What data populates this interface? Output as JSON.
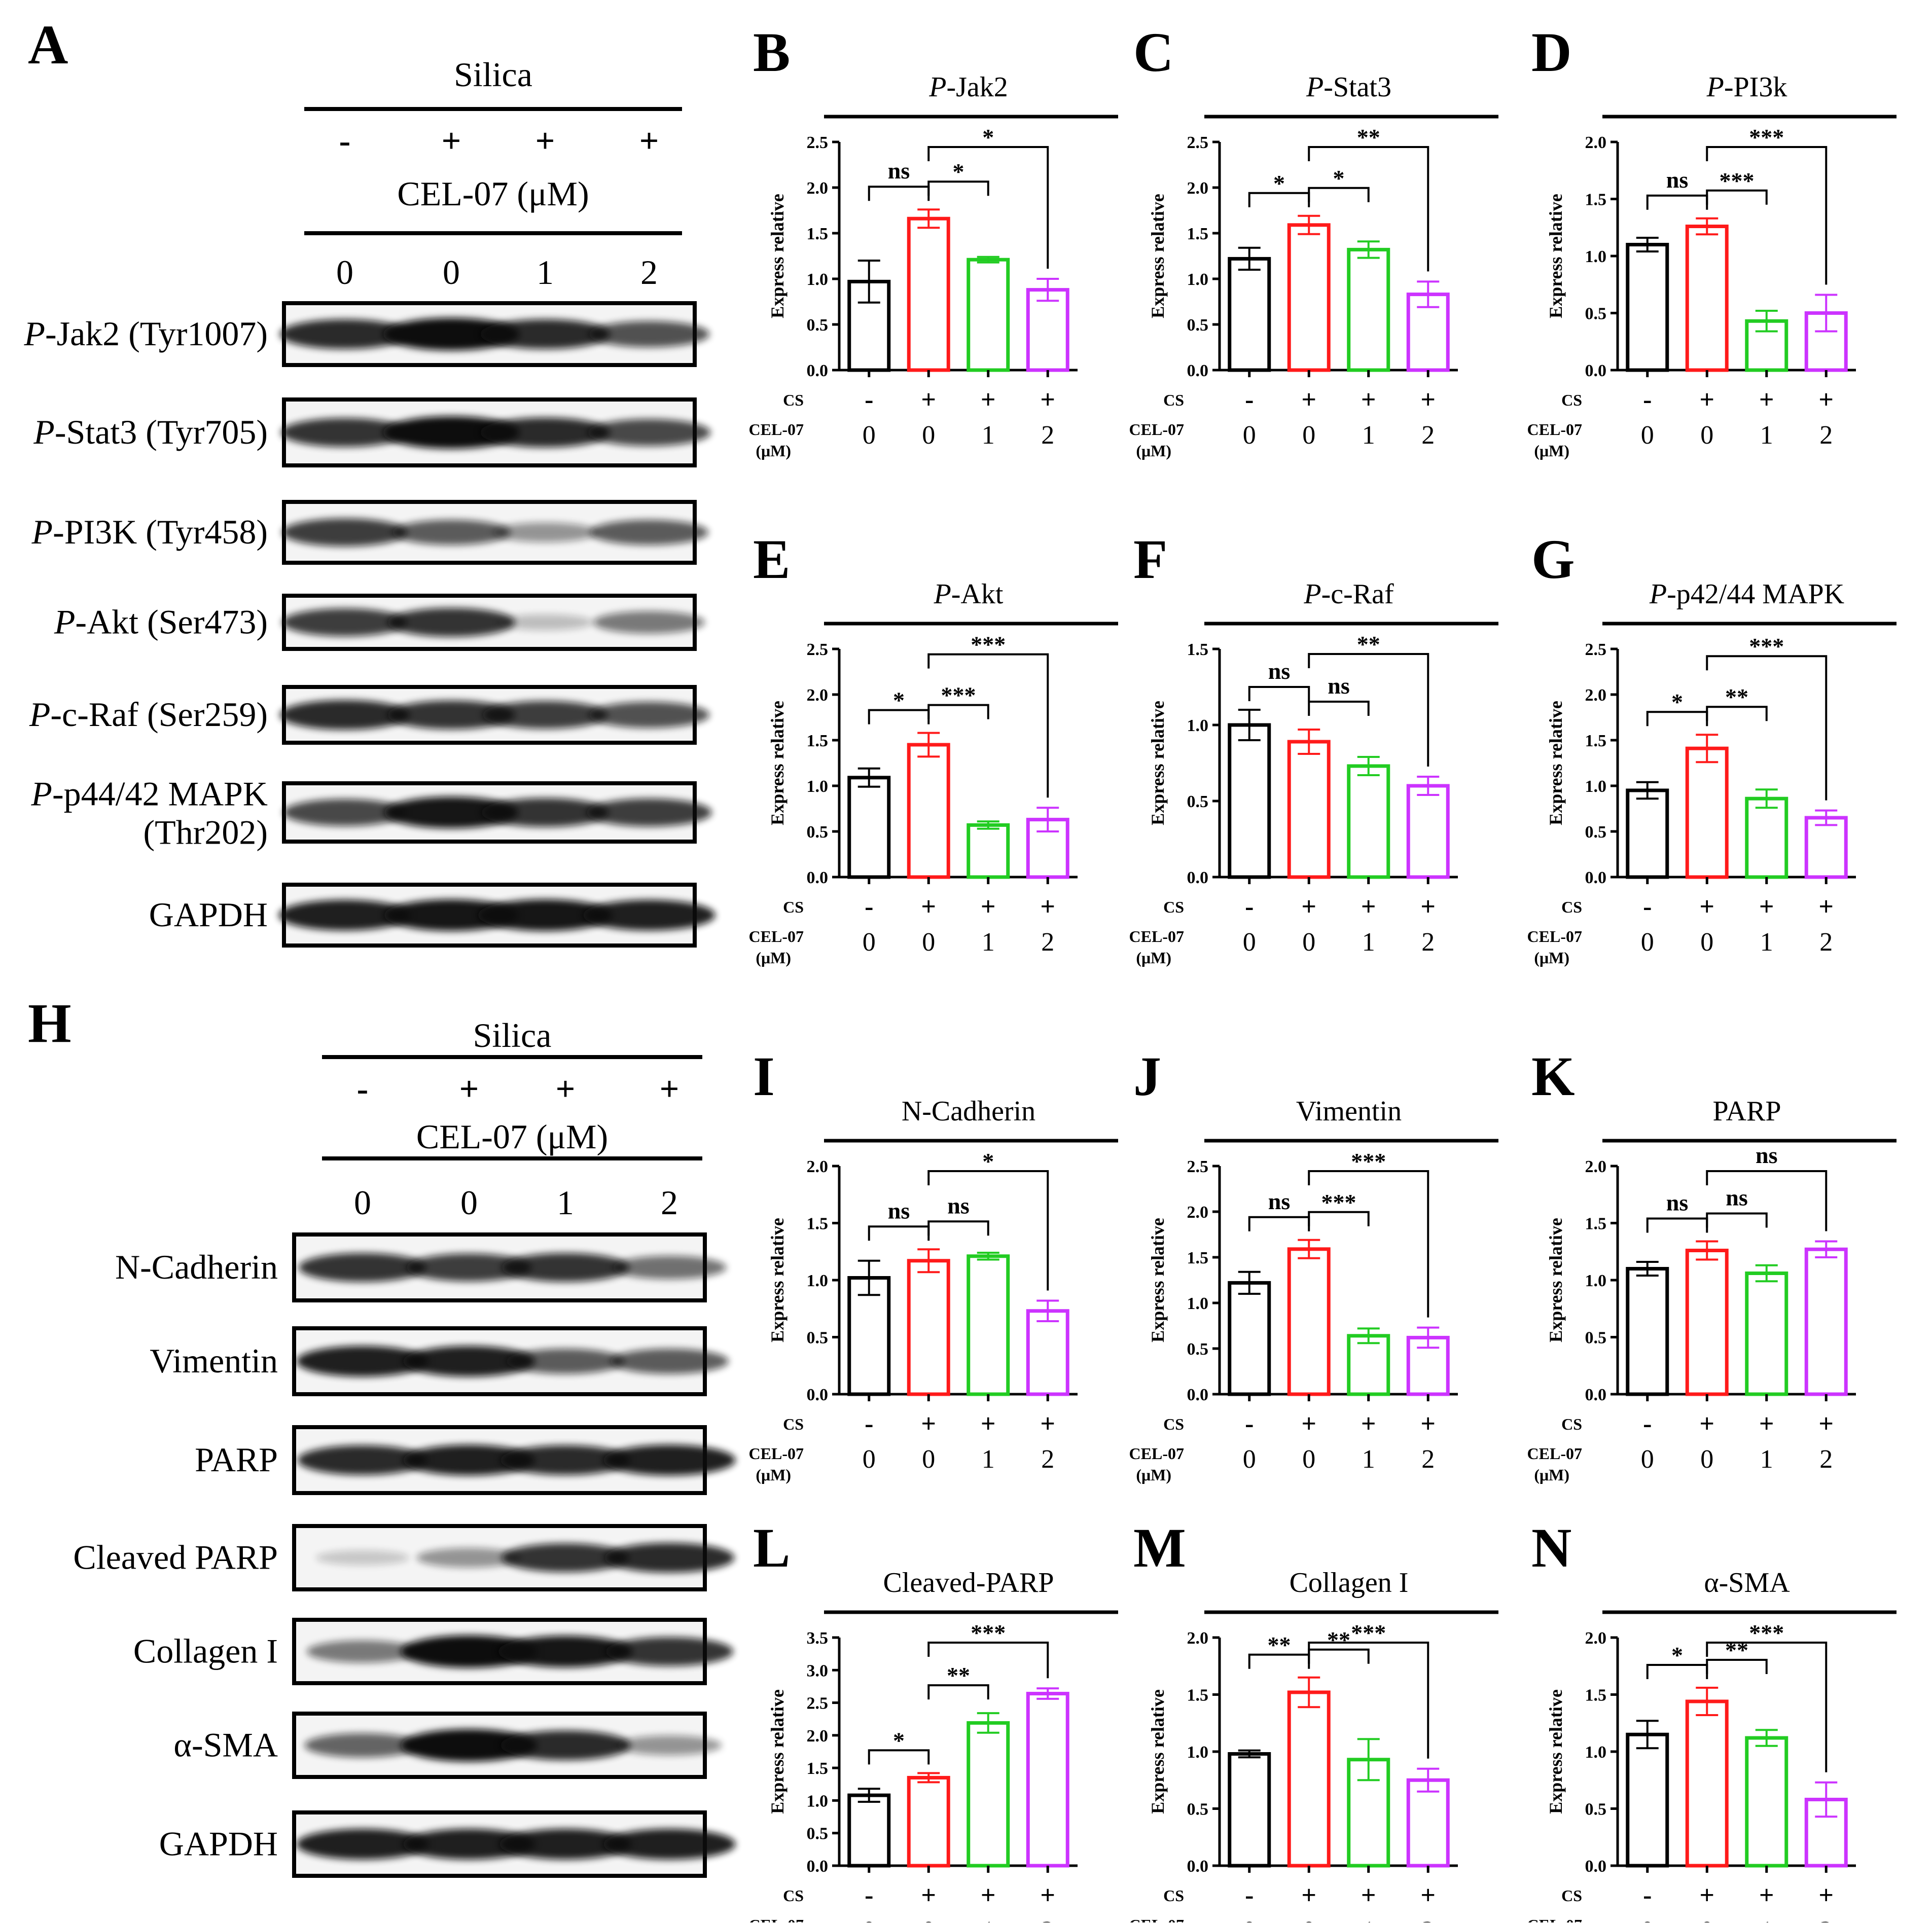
{
  "colors": {
    "ctrl": "#000000",
    "silica": "#ff1a1a",
    "cel1": "#22cc22",
    "cel2": "#cc33ff"
  },
  "blots": [
    {
      "panel": "A",
      "header": "Silica",
      "signs": [
        "-",
        "+",
        "+",
        "+"
      ],
      "treatment": "CEL-07 (μM)",
      "doses": [
        "0",
        "0",
        "1",
        "2"
      ],
      "rows": [
        {
          "italic": "P",
          "label": "-Jak2 (Tyr1007)",
          "bands": [
            0.85,
            1.0,
            0.85,
            0.65
          ]
        },
        {
          "italic": "P",
          "label": "-Stat3 (Tyr705)",
          "bands": [
            0.8,
            1.0,
            0.85,
            0.7
          ]
        },
        {
          "italic": "P",
          "label": "-PI3K (Tyr458)",
          "bands": [
            0.75,
            0.6,
            0.3,
            0.6
          ]
        },
        {
          "italic": "P",
          "label": "-Akt (Ser473)",
          "bands": [
            0.75,
            0.8,
            0.1,
            0.45
          ]
        },
        {
          "italic": "P",
          "label": "-c-Raf (Ser259)",
          "bands": [
            0.85,
            0.8,
            0.75,
            0.65
          ]
        },
        {
          "italic": "P",
          "label": "-p44/42 MAPK",
          "label2": "(Thr202)",
          "bands": [
            0.7,
            0.95,
            0.8,
            0.75
          ]
        },
        {
          "italic": "",
          "label": "GAPDH",
          "bands": [
            0.9,
            0.95,
            0.95,
            0.9
          ]
        }
      ]
    },
    {
      "panel": "H",
      "header": "Silica",
      "signs": [
        "-",
        "+",
        "+",
        "+"
      ],
      "treatment": "CEL-07 (μM)",
      "doses": [
        "0",
        "0",
        "1",
        "2"
      ],
      "rows": [
        {
          "italic": "",
          "label": "N-Cadherin",
          "bands": [
            0.8,
            0.75,
            0.8,
            0.5
          ]
        },
        {
          "italic": "",
          "label": "Vimentin",
          "bands": [
            0.9,
            0.9,
            0.6,
            0.6
          ]
        },
        {
          "italic": "",
          "label": "PARP",
          "bands": [
            0.85,
            0.9,
            0.85,
            0.9
          ]
        },
        {
          "italic": "",
          "label": "Cleaved PARP",
          "bands": [
            0.05,
            0.3,
            0.8,
            0.85
          ]
        },
        {
          "italic": "",
          "label": "Collagen I",
          "bands": [
            0.45,
            1.0,
            0.95,
            0.8
          ]
        },
        {
          "italic": "",
          "label": "α-SMA",
          "bands": [
            0.55,
            1.0,
            0.85,
            0.3
          ]
        },
        {
          "italic": "",
          "label": "GAPDH",
          "bands": [
            0.9,
            0.9,
            0.9,
            0.9
          ]
        }
      ]
    }
  ],
  "x_labels": {
    "row1": "CS",
    "row2a": "CEL-07",
    "row2b": "(μM)",
    "signs": [
      "-",
      "+",
      "+",
      "+"
    ],
    "doses": [
      "0",
      "0",
      "1",
      "2"
    ]
  },
  "chart_data": [
    {
      "panel": "B",
      "type": "bar",
      "title_italic": "P",
      "title": "-Jak2",
      "ylabel": "Express relative",
      "ylim": [
        0,
        2.5
      ],
      "ticks": [
        "0.0",
        "0.5",
        "1.0",
        "1.5",
        "2.0",
        "2.5"
      ],
      "values": [
        0.97,
        1.66,
        1.21,
        0.88
      ],
      "errors": [
        0.23,
        0.1,
        0.03,
        0.12
      ],
      "sig": [
        {
          "from": 0,
          "to": 1,
          "label": "ns"
        },
        {
          "from": 1,
          "to": 2,
          "label": "*"
        },
        {
          "from": 1,
          "to": 3,
          "label": "*"
        }
      ]
    },
    {
      "panel": "C",
      "type": "bar",
      "title_italic": "P",
      "title": "-Stat3",
      "ylabel": "Express relative",
      "ylim": [
        0,
        2.5
      ],
      "ticks": [
        "0.0",
        "0.5",
        "1.0",
        "1.5",
        "2.0",
        "2.5"
      ],
      "values": [
        1.22,
        1.59,
        1.32,
        0.83
      ],
      "errors": [
        0.12,
        0.1,
        0.09,
        0.14
      ],
      "sig": [
        {
          "from": 0,
          "to": 1,
          "label": "*"
        },
        {
          "from": 1,
          "to": 2,
          "label": "*"
        },
        {
          "from": 1,
          "to": 3,
          "label": "**"
        }
      ]
    },
    {
      "panel": "D",
      "type": "bar",
      "title_italic": "P",
      "title": "-PI3k",
      "ylabel": "Express relative",
      "ylim": [
        0,
        2.0
      ],
      "ticks": [
        "0.0",
        "0.5",
        "1.0",
        "1.5",
        "2.0"
      ],
      "values": [
        1.1,
        1.26,
        0.43,
        0.5
      ],
      "errors": [
        0.06,
        0.07,
        0.09,
        0.16
      ],
      "sig": [
        {
          "from": 0,
          "to": 1,
          "label": "ns"
        },
        {
          "from": 1,
          "to": 2,
          "label": "***"
        },
        {
          "from": 1,
          "to": 3,
          "label": "***"
        }
      ]
    },
    {
      "panel": "E",
      "type": "bar",
      "title_italic": "P",
      "title": "-Akt",
      "ylabel": "Express relative",
      "ylim": [
        0,
        2.5
      ],
      "ticks": [
        "0.0",
        "0.5",
        "1.0",
        "1.5",
        "2.0",
        "2.5"
      ],
      "values": [
        1.09,
        1.45,
        0.57,
        0.63
      ],
      "errors": [
        0.1,
        0.13,
        0.04,
        0.13
      ],
      "sig": [
        {
          "from": 0,
          "to": 1,
          "label": "*"
        },
        {
          "from": 1,
          "to": 2,
          "label": "***"
        },
        {
          "from": 1,
          "to": 3,
          "label": "***"
        }
      ]
    },
    {
      "panel": "F",
      "type": "bar",
      "title_italic": "P",
      "title": "-c-Raf",
      "ylabel": "Express relative",
      "ylim": [
        0,
        1.5
      ],
      "ticks": [
        "0.0",
        "0.5",
        "1.0",
        "1.5"
      ],
      "values": [
        1.0,
        0.89,
        0.73,
        0.6
      ],
      "errors": [
        0.1,
        0.08,
        0.06,
        0.06
      ],
      "sig": [
        {
          "from": 0,
          "to": 1,
          "label": "ns"
        },
        {
          "from": 1,
          "to": 2,
          "label": "ns"
        },
        {
          "from": 1,
          "to": 3,
          "label": "**"
        }
      ]
    },
    {
      "panel": "G",
      "type": "bar",
      "title_italic": "P",
      "title": "-p42/44 MAPK",
      "ylabel": "Express relative",
      "ylim": [
        0,
        2.5
      ],
      "ticks": [
        "0.0",
        "0.5",
        "1.0",
        "1.5",
        "2.0",
        "2.5"
      ],
      "values": [
        0.95,
        1.41,
        0.86,
        0.65
      ],
      "errors": [
        0.09,
        0.15,
        0.1,
        0.08
      ],
      "sig": [
        {
          "from": 0,
          "to": 1,
          "label": "*"
        },
        {
          "from": 1,
          "to": 2,
          "label": "**"
        },
        {
          "from": 1,
          "to": 3,
          "label": "***"
        }
      ]
    },
    {
      "panel": "I",
      "type": "bar",
      "title_italic": "",
      "title": "N-Cadherin",
      "ylabel": "Express relative",
      "ylim": [
        0,
        2.0
      ],
      "ticks": [
        "0.0",
        "0.5",
        "1.0",
        "1.5",
        "2.0"
      ],
      "values": [
        1.02,
        1.17,
        1.21,
        0.73
      ],
      "errors": [
        0.15,
        0.1,
        0.03,
        0.09
      ],
      "sig": [
        {
          "from": 0,
          "to": 1,
          "label": "ns"
        },
        {
          "from": 1,
          "to": 2,
          "label": "ns"
        },
        {
          "from": 1,
          "to": 3,
          "label": "*"
        }
      ]
    },
    {
      "panel": "J",
      "type": "bar",
      "title_italic": "",
      "title": "Vimentin",
      "ylabel": "Express relative",
      "ylim": [
        0,
        2.5
      ],
      "ticks": [
        "0.0",
        "0.5",
        "1.0",
        "1.5",
        "2.0",
        "2.5"
      ],
      "values": [
        1.22,
        1.59,
        0.64,
        0.62
      ],
      "errors": [
        0.12,
        0.1,
        0.08,
        0.11
      ],
      "sig": [
        {
          "from": 0,
          "to": 1,
          "label": "ns"
        },
        {
          "from": 1,
          "to": 2,
          "label": "***"
        },
        {
          "from": 1,
          "to": 3,
          "label": "***"
        }
      ]
    },
    {
      "panel": "K",
      "type": "bar",
      "title_italic": "",
      "title": "PARP",
      "ylabel": "Express relative",
      "ylim": [
        0,
        2.0
      ],
      "ticks": [
        "0.0",
        "0.5",
        "1.0",
        "1.5",
        "2.0"
      ],
      "values": [
        1.1,
        1.26,
        1.06,
        1.27
      ],
      "errors": [
        0.06,
        0.08,
        0.07,
        0.07
      ],
      "sig": [
        {
          "from": 0,
          "to": 1,
          "label": "ns"
        },
        {
          "from": 1,
          "to": 2,
          "label": "ns"
        },
        {
          "from": 1,
          "to": 3,
          "label": "ns"
        }
      ]
    },
    {
      "panel": "L",
      "type": "bar",
      "title_italic": "",
      "title": "Cleaved-PARP",
      "ylabel": "Express relative",
      "ylim": [
        0,
        3.5
      ],
      "ticks": [
        "0.0",
        "0.5",
        "1.0",
        "1.5",
        "2.0",
        "2.5",
        "3.0",
        "3.5"
      ],
      "values": [
        1.08,
        1.35,
        2.19,
        2.64
      ],
      "errors": [
        0.1,
        0.07,
        0.15,
        0.08
      ],
      "sig": [
        {
          "from": 0,
          "to": 1,
          "label": "*"
        },
        {
          "from": 1,
          "to": 2,
          "label": "**"
        },
        {
          "from": 1,
          "to": 3,
          "label": "***"
        }
      ]
    },
    {
      "panel": "M",
      "type": "bar",
      "title_italic": "",
      "title": "Collagen I",
      "ylabel": "Express relative",
      "ylim": [
        0,
        2.0
      ],
      "ticks": [
        "0.0",
        "0.5",
        "1.0",
        "1.5",
        "2.0"
      ],
      "values": [
        0.98,
        1.52,
        0.93,
        0.75
      ],
      "errors": [
        0.03,
        0.13,
        0.18,
        0.1
      ],
      "sig": [
        {
          "from": 0,
          "to": 1,
          "label": "**"
        },
        {
          "from": 1,
          "to": 2,
          "label": "**"
        },
        {
          "from": 1,
          "to": 3,
          "label": "***"
        }
      ]
    },
    {
      "panel": "N",
      "type": "bar",
      "title_italic": "",
      "title": "α-SMA",
      "ylabel": "Express relative",
      "ylim": [
        0,
        2.0
      ],
      "ticks": [
        "0.0",
        "0.5",
        "1.0",
        "1.5",
        "2.0"
      ],
      "values": [
        1.15,
        1.44,
        1.12,
        0.58
      ],
      "errors": [
        0.12,
        0.12,
        0.07,
        0.15
      ],
      "sig": [
        {
          "from": 0,
          "to": 1,
          "label": "*"
        },
        {
          "from": 1,
          "to": 2,
          "label": "**"
        },
        {
          "from": 1,
          "to": 3,
          "label": "***"
        }
      ]
    }
  ]
}
